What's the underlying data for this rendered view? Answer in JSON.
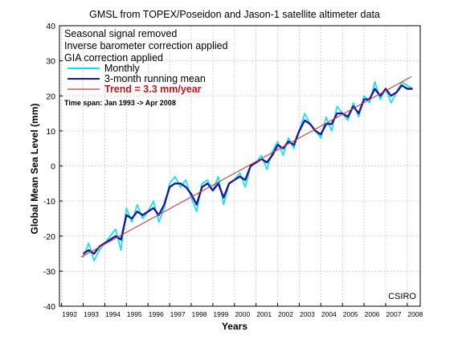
{
  "chart_data": {
    "type": "line",
    "title": "GMSL from TOPEX/Poseidon and Jason-1 satellite altimeter data",
    "xlabel": "Years",
    "ylabel": "Global Mean Sea Level (mm)",
    "xlim": [
      1991.9,
      2008.6
    ],
    "ylim": [
      -40,
      40
    ],
    "yticks": [
      -40,
      -30,
      -20,
      -10,
      0,
      10,
      20,
      30,
      40
    ],
    "xticks": [
      "1992",
      "1993",
      "1994",
      "1995",
      "1996",
      "1997",
      "1998",
      "1999",
      "2000",
      "2001",
      "2002",
      "2003",
      "2004",
      "2005",
      "2006",
      "2007",
      "2008"
    ],
    "grid": true,
    "legend_position": "top-left",
    "notes": [
      "Seasonal signal removed",
      "Inverse barometer correction applied",
      "GIA correction applied"
    ],
    "time_span": "Time span: Jan 1993 -> Apr 2008",
    "credit": "CSIRO",
    "series": [
      {
        "name": "Monthly",
        "color": "#00e5ee",
        "x": [
          1993.0,
          1993.25,
          1993.5,
          1993.75,
          1994.0,
          1994.25,
          1994.5,
          1994.75,
          1995.0,
          1995.25,
          1995.5,
          1995.75,
          1996.0,
          1996.25,
          1996.5,
          1996.75,
          1997.0,
          1997.25,
          1997.5,
          1997.75,
          1998.0,
          1998.25,
          1998.5,
          1998.75,
          1999.0,
          1999.25,
          1999.5,
          1999.75,
          2000.0,
          2000.25,
          2000.5,
          2000.75,
          2001.0,
          2001.25,
          2001.5,
          2001.75,
          2002.0,
          2002.25,
          2002.5,
          2002.75,
          2003.0,
          2003.25,
          2003.5,
          2003.75,
          2004.0,
          2004.25,
          2004.5,
          2004.75,
          2005.0,
          2005.25,
          2005.5,
          2005.75,
          2006.0,
          2006.25,
          2006.5,
          2006.75,
          2007.0,
          2007.25,
          2007.5,
          2007.75,
          2008.0,
          2008.25
        ],
        "y": [
          -26,
          -22,
          -27,
          -24,
          -22,
          -20,
          -18,
          -24,
          -12,
          -16,
          -11,
          -15,
          -13,
          -10,
          -16,
          -12,
          -5,
          -3,
          -6,
          -4,
          -9,
          -13,
          -5,
          -4,
          -7,
          -3,
          -11,
          -5,
          -4,
          -2,
          -6,
          0,
          1,
          3,
          -1,
          4,
          7,
          3,
          8,
          5,
          10,
          15,
          12,
          10,
          8,
          14,
          10,
          17,
          15,
          13,
          18,
          14,
          20,
          18,
          24,
          19,
          22,
          18,
          21,
          24,
          23,
          22
        ]
      },
      {
        "name": "3-month running mean",
        "color": "#1a1aa0",
        "x": [
          1993.0,
          1993.25,
          1993.5,
          1993.75,
          1994.0,
          1994.25,
          1994.5,
          1994.75,
          1995.0,
          1995.25,
          1995.5,
          1995.75,
          1996.0,
          1996.25,
          1996.5,
          1996.75,
          1997.0,
          1997.25,
          1997.5,
          1997.75,
          1998.0,
          1998.25,
          1998.5,
          1998.75,
          1999.0,
          1999.25,
          1999.5,
          1999.75,
          2000.0,
          2000.25,
          2000.5,
          2000.75,
          2001.0,
          2001.25,
          2001.5,
          2001.75,
          2002.0,
          2002.25,
          2002.5,
          2002.75,
          2003.0,
          2003.25,
          2003.5,
          2003.75,
          2004.0,
          2004.25,
          2004.5,
          2004.75,
          2005.0,
          2005.25,
          2005.5,
          2005.75,
          2006.0,
          2006.25,
          2006.5,
          2006.75,
          2007.0,
          2007.25,
          2007.5,
          2007.75,
          2008.0,
          2008.25
        ],
        "y": [
          -25,
          -24,
          -25,
          -23,
          -22,
          -21,
          -20,
          -21,
          -14,
          -15,
          -13,
          -14,
          -13,
          -12,
          -14,
          -11,
          -6,
          -5,
          -5,
          -6,
          -8,
          -11,
          -6,
          -5,
          -7,
          -5,
          -9,
          -5,
          -4,
          -3,
          -4,
          0,
          1,
          2,
          1,
          3,
          6,
          5,
          7,
          6,
          10,
          13,
          12,
          10,
          9,
          12,
          12,
          15,
          15,
          14,
          17,
          15,
          19,
          19,
          22,
          20,
          22,
          20,
          21,
          23,
          22,
          22
        ]
      },
      {
        "name": "Trend = 3.3 mm/year",
        "color": "#c83c3c",
        "x": [
          1992.9,
          2008.2
        ],
        "y": [
          -26,
          25.5
        ]
      }
    ]
  }
}
